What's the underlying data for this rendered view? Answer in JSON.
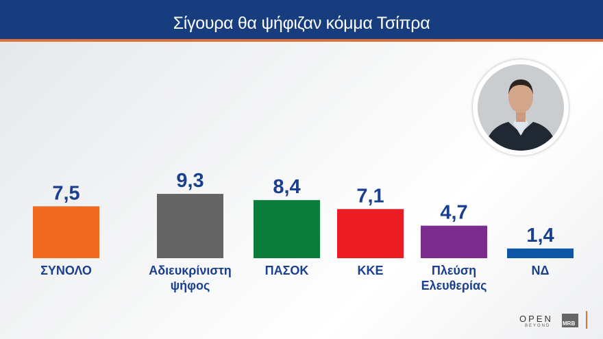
{
  "header": {
    "title": "Σίγουρα θα ψήφιζαν κόμμα Τσίπρα"
  },
  "logos": {
    "open": "OPEN",
    "open_sub": "BEYOND",
    "mrb": "MRB"
  },
  "chart_data": {
    "type": "bar",
    "title": "Σίγουρα θα ψήφιζαν κόμμα Τσίπρα",
    "categories": [
      [
        "ΣΥΝΟΛΟ"
      ],
      [
        "Αδιευκρίνιστη",
        "ψήφος"
      ],
      [
        "ΠΑΣΟΚ"
      ],
      [
        "ΚΚΕ"
      ],
      [
        "Πλεύση",
        "Ελευθερίας"
      ],
      [
        "ΝΔ"
      ]
    ],
    "values": [
      7.5,
      9.3,
      8.4,
      7.1,
      4.7,
      1.4
    ],
    "value_labels": [
      "7,5",
      "9,3",
      "8,4",
      "7,1",
      "4,7",
      "1,4"
    ],
    "colors": [
      "#f26a21",
      "#646464",
      "#0a7d3a",
      "#ec1c24",
      "#7b2d8e",
      "#0d55a5"
    ],
    "label_color": "#1a3f8f",
    "grid": false,
    "xlabel": "",
    "ylabel": ""
  }
}
